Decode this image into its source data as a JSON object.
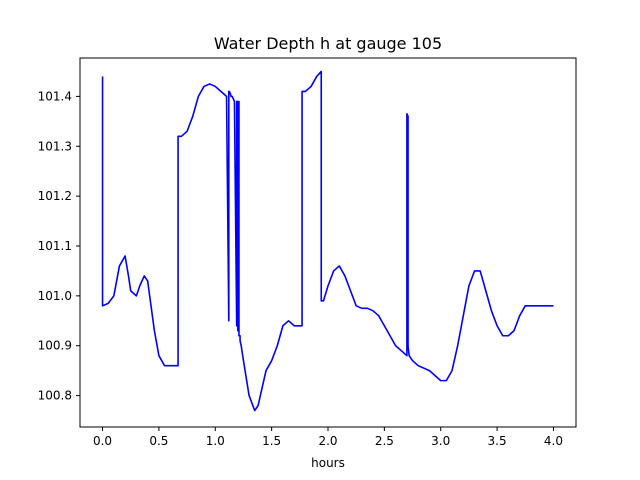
{
  "chart_data": {
    "type": "line",
    "title": "Water Depth h at gauge 105",
    "xlabel": "hours",
    "ylabel": "",
    "xlim": [
      -0.2,
      4.2
    ],
    "ylim": [
      100.737,
      101.477
    ],
    "xticks": [
      0.0,
      0.5,
      1.0,
      1.5,
      2.0,
      2.5,
      3.0,
      3.5,
      4.0
    ],
    "xtick_labels": [
      "0.0",
      "0.5",
      "1.0",
      "1.5",
      "2.0",
      "2.5",
      "3.0",
      "3.5",
      "4.0"
    ],
    "yticks": [
      100.8,
      100.9,
      101.0,
      101.1,
      101.2,
      101.3,
      101.4
    ],
    "ytick_labels": [
      "100.8",
      "100.9",
      "101.0",
      "101.1",
      "101.2",
      "101.3",
      "101.4"
    ],
    "grid": false,
    "series": [
      {
        "color": "#0000ff",
        "x": [
          0.0,
          0.0,
          0.0,
          0.05,
          0.1,
          0.15,
          0.2,
          0.23,
          0.25,
          0.3,
          0.33,
          0.37,
          0.4,
          0.43,
          0.46,
          0.5,
          0.55,
          0.6,
          0.65,
          0.67,
          0.67,
          0.7,
          0.75,
          0.8,
          0.85,
          0.9,
          0.95,
          1.0,
          1.05,
          1.1,
          1.12,
          1.12,
          1.125,
          1.135,
          1.14,
          1.15,
          1.17,
          1.19,
          1.19,
          1.2,
          1.2,
          1.21,
          1.21,
          1.22,
          1.22,
          1.23,
          1.25,
          1.3,
          1.35,
          1.38,
          1.4,
          1.42,
          1.45,
          1.5,
          1.55,
          1.6,
          1.65,
          1.7,
          1.75,
          1.77,
          1.77,
          1.8,
          1.85,
          1.9,
          1.94,
          1.94,
          1.96,
          2.0,
          2.05,
          2.1,
          2.15,
          2.2,
          2.25,
          2.3,
          2.35,
          2.4,
          2.45,
          2.5,
          2.55,
          2.6,
          2.65,
          2.7,
          2.7,
          2.71,
          2.71,
          2.72,
          2.75,
          2.8,
          2.9,
          3.0,
          3.05,
          3.1,
          3.15,
          3.2,
          3.25,
          3.3,
          3.35,
          3.4,
          3.45,
          3.5,
          3.55,
          3.6,
          3.65,
          3.7,
          3.75,
          3.8,
          3.85,
          3.9,
          3.95,
          4.0
        ],
        "y": [
          101.44,
          100.98,
          100.98,
          100.985,
          101.0,
          101.06,
          101.08,
          101.04,
          101.01,
          101.0,
          101.02,
          101.04,
          101.03,
          100.98,
          100.93,
          100.88,
          100.86,
          100.86,
          100.86,
          100.86,
          101.32,
          101.32,
          101.33,
          101.36,
          101.4,
          101.42,
          101.425,
          101.42,
          101.41,
          101.4,
          100.95,
          101.41,
          101.41,
          101.405,
          101.4,
          101.4,
          101.39,
          100.94,
          101.39,
          101.39,
          100.93,
          101.39,
          100.92,
          100.92,
          100.91,
          100.9,
          100.87,
          100.8,
          100.77,
          100.78,
          100.8,
          100.82,
          100.85,
          100.87,
          100.9,
          100.94,
          100.95,
          100.94,
          100.94,
          100.94,
          101.41,
          101.41,
          101.42,
          101.44,
          101.45,
          100.99,
          100.99,
          101.02,
          101.05,
          101.06,
          101.04,
          101.01,
          100.98,
          100.975,
          100.975,
          100.97,
          100.96,
          100.94,
          100.92,
          100.9,
          100.89,
          100.88,
          101.365,
          101.36,
          100.9,
          100.88,
          100.87,
          100.86,
          100.85,
          100.83,
          100.83,
          100.85,
          100.9,
          100.96,
          101.02,
          101.05,
          101.05,
          101.01,
          100.97,
          100.94,
          100.92,
          100.92,
          100.93,
          100.96,
          100.98,
          100.98,
          100.98,
          100.98,
          100.98,
          100.98
        ]
      }
    ]
  }
}
